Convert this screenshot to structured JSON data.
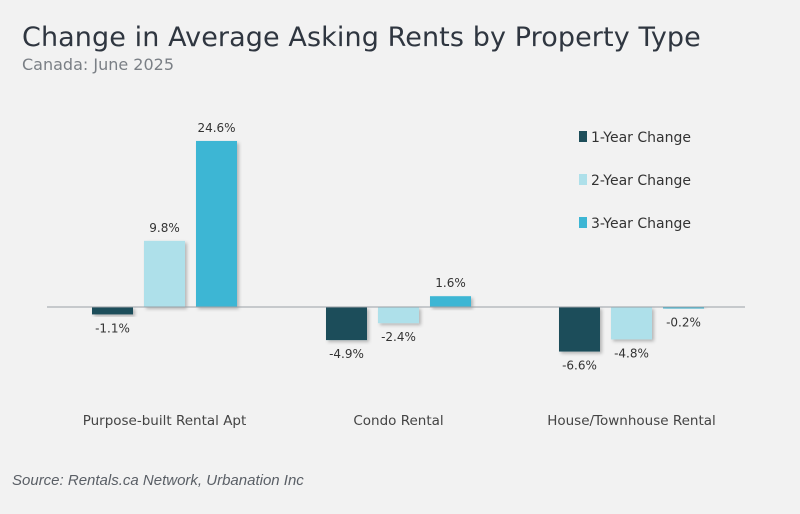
{
  "header": {
    "title": "Change in Average Asking Rents by Property Type",
    "subtitle": "Canada: June 2025"
  },
  "footer": {
    "source": "Source: Rentals.ca Network, Urbanation Inc"
  },
  "chart_data": {
    "type": "bar",
    "title": "Change in Average Asking Rents by Property Type",
    "subtitle": "Canada: June 2025",
    "categories": [
      "Purpose-built Rental Apt",
      "Condo Rental",
      "House/Townhouse Rental"
    ],
    "series": [
      {
        "name": "1-Year Change",
        "color": "#1e4e5a",
        "values": [
          -1.1,
          -4.9,
          -6.6
        ],
        "labels": [
          "-1.1%",
          "-4.9%",
          "-6.6%"
        ]
      },
      {
        "name": "2-Year Change",
        "color": "#aee0ea",
        "values": [
          9.8,
          -2.4,
          -4.8
        ],
        "labels": [
          "9.8%",
          "-2.4%",
          "-4.8%"
        ]
      },
      {
        "name": "3-Year Change",
        "color": "#3db6d4",
        "values": [
          24.6,
          1.6,
          -0.2
        ],
        "labels": [
          "24.6%",
          "1.6%",
          "-0.2%"
        ]
      }
    ],
    "ylim": [
      -9,
      26
    ],
    "grid": false,
    "legend_position": "top-right"
  }
}
